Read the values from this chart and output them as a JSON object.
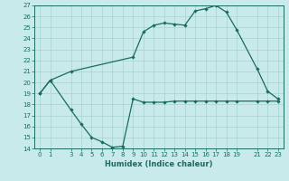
{
  "title": "",
  "xlabel": "Humidex (Indice chaleur)",
  "ylabel": "",
  "background_color": "#c8eaea",
  "plot_bg_color": "#c8eaea",
  "line_color": "#1a6b60",
  "grid_color": "#a8d4d0",
  "series1_x": [
    0,
    1,
    3,
    4,
    5,
    6,
    7,
    8,
    9,
    10,
    11,
    12,
    13,
    14,
    15,
    16,
    17,
    18,
    19,
    21,
    22,
    23
  ],
  "series1_y": [
    19.0,
    20.2,
    17.5,
    16.2,
    15.0,
    14.6,
    14.1,
    14.2,
    18.5,
    18.2,
    18.2,
    18.2,
    18.3,
    18.3,
    18.3,
    18.3,
    18.3,
    18.3,
    18.3,
    18.3,
    18.3,
    18.3
  ],
  "series2_x": [
    0,
    1,
    3,
    9,
    10,
    11,
    12,
    13,
    14,
    15,
    16,
    17,
    18,
    19,
    21,
    22,
    23
  ],
  "series2_y": [
    19.0,
    20.2,
    21.0,
    22.3,
    24.6,
    25.2,
    25.4,
    25.3,
    25.2,
    26.5,
    26.7,
    27.0,
    26.4,
    24.8,
    21.2,
    19.2,
    18.5
  ],
  "ylim": [
    14,
    27
  ],
  "xlim": [
    -0.5,
    23.5
  ],
  "yticks": [
    14,
    15,
    16,
    17,
    18,
    19,
    20,
    21,
    22,
    23,
    24,
    25,
    26,
    27
  ],
  "xticks": [
    0,
    1,
    3,
    4,
    5,
    6,
    7,
    8,
    9,
    10,
    11,
    12,
    13,
    14,
    15,
    16,
    17,
    18,
    19,
    21,
    22,
    23
  ],
  "xlabel_fontsize": 6,
  "tick_fontsize": 5,
  "linewidth": 0.9,
  "markersize": 2.2
}
